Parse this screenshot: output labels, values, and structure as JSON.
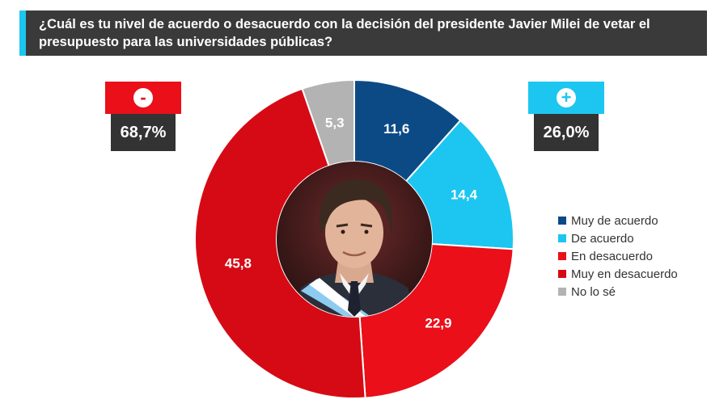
{
  "header": {
    "question": "¿Cuál es tu nivel de acuerdo o desacuerdo con la decisión del presidente Javier Milei de vetar el presupuesto para las universidades públicas?"
  },
  "badges": {
    "negative": {
      "symbol": "-",
      "value": "68,7%",
      "color": "#ea0f19"
    },
    "positive": {
      "symbol": "+",
      "value": "26,0%",
      "color": "#1cc6f0"
    }
  },
  "chart_data": {
    "type": "donut",
    "title": "",
    "start_angle_deg": 0,
    "direction": "clockwise",
    "slices": [
      {
        "label": "Muy de acuerdo",
        "value": 11.6,
        "display": "11,6",
        "color": "#0c4a86"
      },
      {
        "label": "De acuerdo",
        "value": 14.4,
        "display": "14,4",
        "color": "#1cc6f0"
      },
      {
        "label": "En desacuerdo",
        "value": 22.9,
        "display": "22,9",
        "color": "#ea0f19"
      },
      {
        "label": "Muy en desacuerdo",
        "value": 45.8,
        "display": "45,8",
        "color": "#d60a14"
      },
      {
        "label": "No lo sé",
        "value": 5.3,
        "display": "5,3",
        "color": "#b3b3b3"
      }
    ],
    "legend_position": "right"
  },
  "center_photo": {
    "icon": "portrait-icon"
  }
}
